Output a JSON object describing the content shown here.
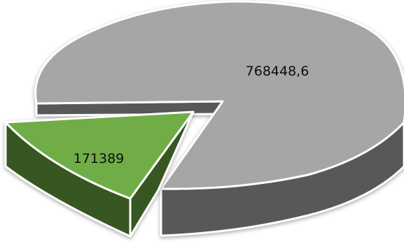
{
  "chart_data": {
    "type": "pie",
    "title": "",
    "series": [
      {
        "values": [
          768448.6,
          171389
        ]
      }
    ],
    "categories": [
      "",
      ""
    ],
    "data_labels": [
      "768448,6",
      "171389"
    ],
    "exploded_slice": 1,
    "style": "3d-exploded",
    "legend": "none"
  },
  "colors": {
    "slice_0_top": "#a6a6a6",
    "slice_0_side": "#595959",
    "slice_1_top": "#70ad47",
    "slice_1_side": "#375623"
  }
}
